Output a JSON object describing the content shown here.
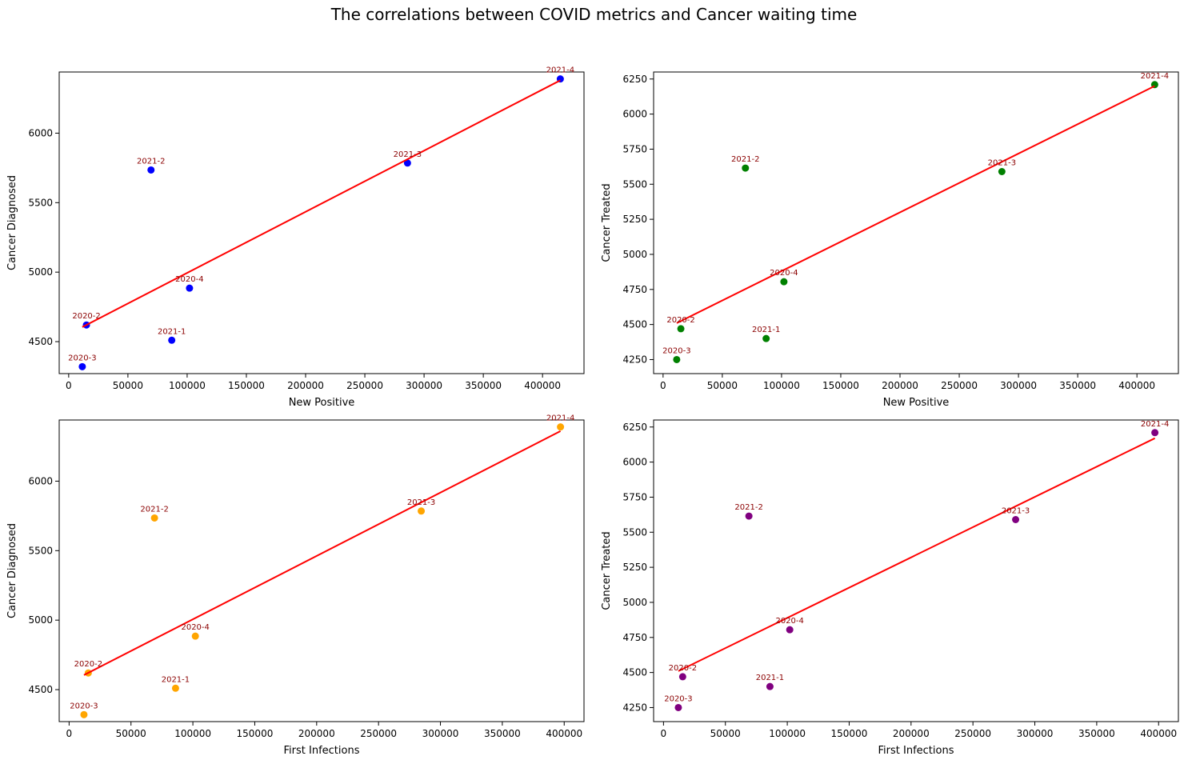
{
  "title": "The correlations between COVID metrics and Cancer waiting time",
  "chart_data": [
    {
      "type": "scatter",
      "xlabel": "New Positive",
      "ylabel": "Cancer Diagnosed",
      "marker_color": "#0000ff",
      "fit_line_color": "#ff0000",
      "xlim": [
        -8000,
        435000
      ],
      "ylim": [
        4270,
        6440
      ],
      "x_ticks": [
        0,
        50000,
        100000,
        150000,
        200000,
        250000,
        300000,
        350000,
        400000
      ],
      "y_ticks": [
        4500,
        5000,
        5500,
        6000
      ],
      "points": [
        {
          "label": "2020-2",
          "x": 15000,
          "y": 4620
        },
        {
          "label": "2020-3",
          "x": 11500,
          "y": 4320
        },
        {
          "label": "2020-4",
          "x": 102000,
          "y": 4885
        },
        {
          "label": "2021-1",
          "x": 87000,
          "y": 4510
        },
        {
          "label": "2021-2",
          "x": 69500,
          "y": 5735
        },
        {
          "label": "2021-3",
          "x": 286000,
          "y": 5785
        },
        {
          "label": "2021-4",
          "x": 415000,
          "y": 6390
        }
      ],
      "fit_line": {
        "x": [
          11500,
          415000
        ],
        "y": [
          4605,
          6380
        ]
      }
    },
    {
      "type": "scatter",
      "xlabel": "New Positive",
      "ylabel": "Cancer Treated",
      "marker_color": "#008000",
      "fit_line_color": "#ff0000",
      "xlim": [
        -8000,
        435000
      ],
      "ylim": [
        4150,
        6300
      ],
      "x_ticks": [
        0,
        50000,
        100000,
        150000,
        200000,
        250000,
        300000,
        350000,
        400000
      ],
      "y_ticks": [
        4250,
        4500,
        4750,
        5000,
        5250,
        5500,
        5750,
        6000,
        6250
      ],
      "points": [
        {
          "label": "2020-2",
          "x": 15000,
          "y": 4470
        },
        {
          "label": "2020-3",
          "x": 11500,
          "y": 4250
        },
        {
          "label": "2020-4",
          "x": 102000,
          "y": 4805
        },
        {
          "label": "2021-1",
          "x": 87000,
          "y": 4400
        },
        {
          "label": "2021-2",
          "x": 69500,
          "y": 5615
        },
        {
          "label": "2021-3",
          "x": 286000,
          "y": 5590
        },
        {
          "label": "2021-4",
          "x": 415000,
          "y": 6210
        }
      ],
      "fit_line": {
        "x": [
          11500,
          415000
        ],
        "y": [
          4510,
          6200
        ]
      }
    },
    {
      "type": "scatter",
      "xlabel": "First Infections",
      "ylabel": "Cancer Diagnosed",
      "marker_color": "#ffa500",
      "fit_line_color": "#ff0000",
      "xlim": [
        -8000,
        416000
      ],
      "ylim": [
        4270,
        6440
      ],
      "x_ticks": [
        0,
        50000,
        100000,
        150000,
        200000,
        250000,
        300000,
        350000,
        400000
      ],
      "y_ticks": [
        4500,
        5000,
        5500,
        6000
      ],
      "points": [
        {
          "label": "2020-2",
          "x": 15500,
          "y": 4620
        },
        {
          "label": "2020-3",
          "x": 12000,
          "y": 4320
        },
        {
          "label": "2020-4",
          "x": 102000,
          "y": 4885
        },
        {
          "label": "2021-1",
          "x": 86000,
          "y": 4510
        },
        {
          "label": "2021-2",
          "x": 69000,
          "y": 5735
        },
        {
          "label": "2021-3",
          "x": 284500,
          "y": 5785
        },
        {
          "label": "2021-4",
          "x": 397000,
          "y": 6390
        }
      ],
      "fit_line": {
        "x": [
          12000,
          397000
        ],
        "y": [
          4605,
          6360
        ]
      }
    },
    {
      "type": "scatter",
      "xlabel": "First Infections",
      "ylabel": "Cancer Treated",
      "marker_color": "#800080",
      "fit_line_color": "#ff0000",
      "xlim": [
        -8000,
        416000
      ],
      "ylim": [
        4150,
        6300
      ],
      "x_ticks": [
        0,
        50000,
        100000,
        150000,
        200000,
        250000,
        300000,
        350000,
        400000
      ],
      "y_ticks": [
        4250,
        4500,
        4750,
        5000,
        5250,
        5500,
        5750,
        6000,
        6250
      ],
      "points": [
        {
          "label": "2020-2",
          "x": 15500,
          "y": 4470
        },
        {
          "label": "2020-3",
          "x": 12000,
          "y": 4250
        },
        {
          "label": "2020-4",
          "x": 102000,
          "y": 4805
        },
        {
          "label": "2021-1",
          "x": 86000,
          "y": 4400
        },
        {
          "label": "2021-2",
          "x": 69000,
          "y": 5615
        },
        {
          "label": "2021-3",
          "x": 284500,
          "y": 5590
        },
        {
          "label": "2021-4",
          "x": 397000,
          "y": 6210
        }
      ],
      "fit_line": {
        "x": [
          12000,
          397000
        ],
        "y": [
          4510,
          6170
        ]
      }
    }
  ]
}
